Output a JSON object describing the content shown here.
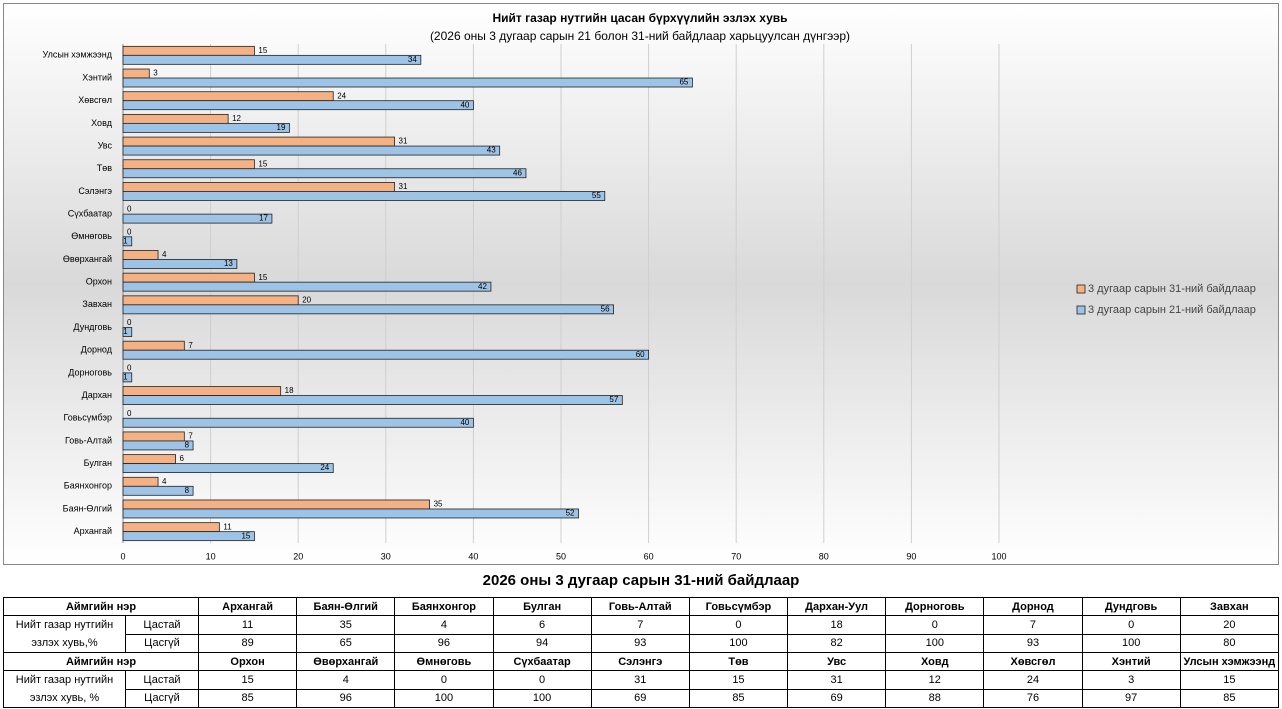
{
  "chart_data": {
    "type": "barh",
    "title": "Нийт газар нутгийн цасан бүрхүүлийн эзлэх хувь",
    "subtitle": "(2026 оны 3 дугаар сарын 21 болон 31-ний байдлаар харьцуулсан дүнгээр)",
    "categories": [
      "Улсын хэмжээнд",
      "Хэнтий",
      "Хөвсгөл",
      "Ховд",
      "Увс",
      "Төв",
      "Сэлэнгэ",
      "Сүхбаатар",
      "Өмнөговь",
      "Өвөрхангай",
      "Орхон",
      "Завхан",
      "Дундговь",
      "Дорнод",
      "Дорноговь",
      "Дархан",
      "Говьсүмбэр",
      "Говь-Алтай",
      "Булган",
      "Баянхонгор",
      "Баян-Өлгий",
      "Архангай"
    ],
    "series": [
      {
        "name": "3 дугаар сарын 31-ний байдлаар",
        "color": "#f4b183",
        "values": [
          15,
          3,
          24,
          12,
          31,
          15,
          31,
          0,
          0,
          4,
          15,
          20,
          0,
          7,
          0,
          18,
          0,
          7,
          6,
          4,
          35,
          11
        ]
      },
      {
        "name": "3 дугаар сарын 21-ний байдлаар",
        "color": "#9dc3e6",
        "values": [
          34,
          65,
          40,
          19,
          43,
          46,
          55,
          17,
          1,
          13,
          42,
          56,
          1,
          60,
          1,
          57,
          40,
          8,
          24,
          8,
          52,
          15
        ]
      }
    ],
    "xlim": [
      0,
      100
    ],
    "xticks": [
      0,
      10,
      20,
      30,
      40,
      50,
      60,
      70,
      80,
      90,
      100
    ],
    "grid": true,
    "legend": "right"
  },
  "table": {
    "title": "2026 оны 3 дугаар сарын 31-ний байдлаар",
    "blocks": [
      {
        "header": "Аймгийн нэр",
        "row_label": "Нийт газар нутгийн эзлэх хувь,%",
        "snow_label": "Цастай",
        "nosnow_label": "Цасгүй",
        "names": [
          "Архангай",
          "Баян-Өлгий",
          "Баянхонгор",
          "Булган",
          "Говь-Алтай",
          "Говьсүмбэр",
          "Дархан-Уул",
          "Дорноговь",
          "Дорнод",
          "Дундговь",
          "Завхан"
        ],
        "snow": [
          11,
          35,
          4,
          6,
          7,
          0,
          18,
          0,
          7,
          0,
          20
        ],
        "nosnow": [
          89,
          65,
          96,
          94,
          93,
          100,
          82,
          100,
          93,
          100,
          80
        ]
      },
      {
        "header": "Аймгийн нэр",
        "row_label": "Нийт газар нутгийн эзлэх хувь, %",
        "snow_label": "Цастай",
        "nosnow_label": "Цасгүй",
        "names": [
          "Орхон",
          "Өвөрхангай",
          "Өмнөговь",
          "Сүхбаатар",
          "Сэлэнгэ",
          "Төв",
          "Увс",
          "Ховд",
          "Хөвсгөл",
          "Хэнтий",
          "Улсын хэмжээнд"
        ],
        "snow": [
          15,
          4,
          0,
          0,
          31,
          15,
          31,
          12,
          24,
          3,
          15
        ],
        "nosnow": [
          85,
          96,
          100,
          100,
          69,
          85,
          69,
          88,
          76,
          97,
          85
        ]
      }
    ]
  }
}
